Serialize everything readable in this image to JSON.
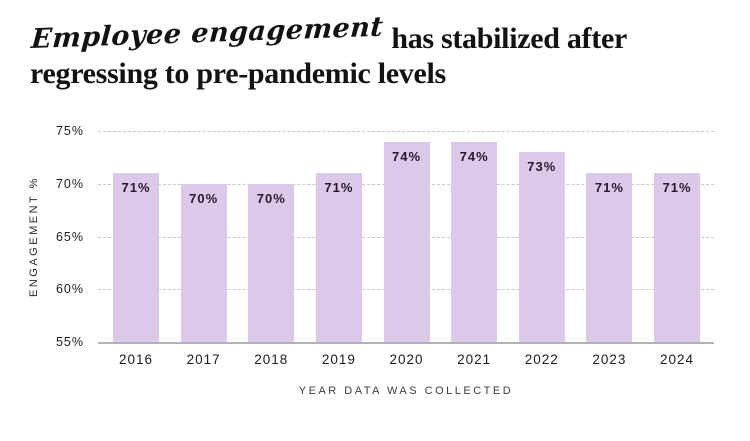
{
  "title": {
    "script_part": "Employee engagement",
    "serif_part": "has stabilized after",
    "line2": "regressing to pre-pandemic levels"
  },
  "chart_data": {
    "type": "bar",
    "title": "Employee engagement has stabilized after regressing to pre-pandemic levels",
    "categories": [
      "2016",
      "2017",
      "2018",
      "2019",
      "2020",
      "2021",
      "2022",
      "2023",
      "2024"
    ],
    "values": [
      71,
      70,
      70,
      71,
      74,
      74,
      73,
      71,
      71
    ],
    "value_labels": [
      "71%",
      "70%",
      "70%",
      "71%",
      "74%",
      "74%",
      "73%",
      "71%",
      "71%"
    ],
    "xlabel": "YEAR DATA WAS COLLECTED",
    "ylabel": "ENGAGEMENT %",
    "ylim": [
      55,
      75
    ],
    "yticks": [
      {
        "label": "75%",
        "value": 75
      },
      {
        "label": "70%",
        "value": 70
      },
      {
        "label": "65%",
        "value": 65
      },
      {
        "label": "60%",
        "value": 60
      },
      {
        "label": "55%",
        "value": 55
      }
    ],
    "grid": "horizontal-dashed",
    "legend": "none",
    "bar_color": "#dcc8e8",
    "value_label_color": "#241a2f",
    "gridline_color": "#c9c9c9",
    "baseline_color": "#b3b0b6"
  }
}
